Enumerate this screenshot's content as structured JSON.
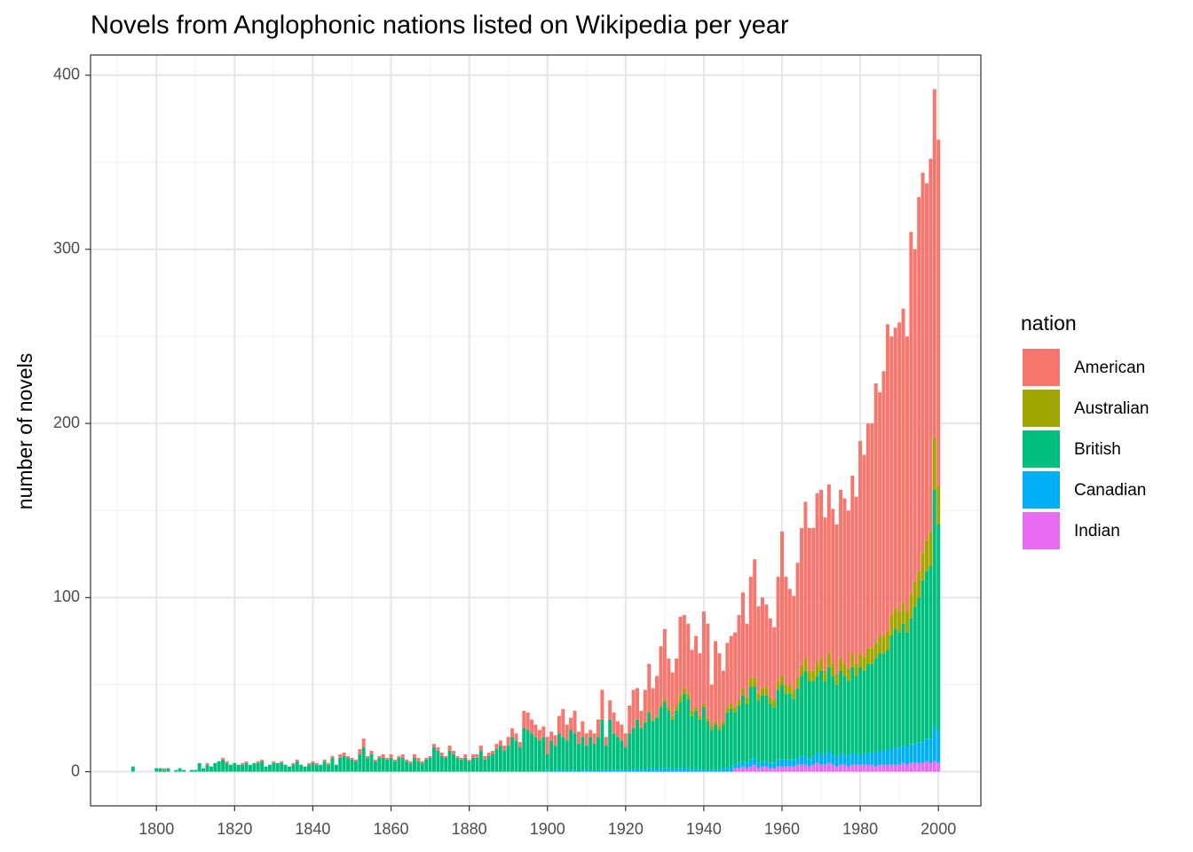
{
  "chart_data": {
    "type": "bar",
    "stacked": true,
    "title": "Novels from Anglophonic nations listed on Wikipedia per year",
    "y_label": "number of novels",
    "legend_title": "nation",
    "legend": "right",
    "grid": true,
    "xlim": [
      1783.15,
      2010.85
    ],
    "xticks": [
      1800,
      1820,
      1840,
      1860,
      1880,
      1900,
      1920,
      1940,
      1960,
      1980,
      2000
    ],
    "ylim": [
      -19.6,
      411.6
    ],
    "yticks": [
      0,
      100,
      200,
      300,
      400
    ],
    "x": [
      1794,
      1795,
      1796,
      1797,
      1798,
      1799,
      1800,
      1801,
      1802,
      1803,
      1804,
      1805,
      1806,
      1807,
      1808,
      1809,
      1810,
      1811,
      1812,
      1813,
      1814,
      1815,
      1816,
      1817,
      1818,
      1819,
      1820,
      1821,
      1822,
      1823,
      1824,
      1825,
      1826,
      1827,
      1828,
      1829,
      1830,
      1831,
      1832,
      1833,
      1834,
      1835,
      1836,
      1837,
      1838,
      1839,
      1840,
      1841,
      1842,
      1843,
      1844,
      1845,
      1846,
      1847,
      1848,
      1849,
      1850,
      1851,
      1852,
      1853,
      1854,
      1855,
      1856,
      1857,
      1858,
      1859,
      1860,
      1861,
      1862,
      1863,
      1864,
      1865,
      1866,
      1867,
      1868,
      1869,
      1870,
      1871,
      1872,
      1873,
      1874,
      1875,
      1876,
      1877,
      1878,
      1879,
      1880,
      1881,
      1882,
      1883,
      1884,
      1885,
      1886,
      1887,
      1888,
      1889,
      1890,
      1891,
      1892,
      1893,
      1894,
      1895,
      1896,
      1897,
      1898,
      1899,
      1900,
      1901,
      1902,
      1903,
      1904,
      1905,
      1906,
      1907,
      1908,
      1909,
      1910,
      1911,
      1912,
      1913,
      1914,
      1915,
      1916,
      1917,
      1918,
      1919,
      1920,
      1921,
      1922,
      1923,
      1924,
      1925,
      1926,
      1927,
      1928,
      1929,
      1930,
      1931,
      1932,
      1933,
      1934,
      1935,
      1936,
      1937,
      1938,
      1939,
      1940,
      1941,
      1942,
      1943,
      1944,
      1945,
      1946,
      1947,
      1948,
      1949,
      1950,
      1951,
      1952,
      1953,
      1954,
      1955,
      1956,
      1957,
      1958,
      1959,
      1960,
      1961,
      1962,
      1963,
      1964,
      1965,
      1966,
      1967,
      1968,
      1969,
      1970,
      1971,
      1972,
      1973,
      1974,
      1975,
      1976,
      1977,
      1978,
      1979,
      1980,
      1981,
      1982,
      1983,
      1984,
      1985,
      1986,
      1987,
      1988,
      1989,
      1990,
      1991,
      1992,
      1993,
      1994,
      1995,
      1996,
      1997,
      1998,
      1999,
      2000
    ],
    "series": [
      {
        "name": "American",
        "color": "#F8766D",
        "values": [
          0,
          0,
          0,
          0,
          0,
          0,
          0,
          0,
          1,
          0,
          0,
          0,
          0,
          0,
          0,
          0,
          0,
          0,
          0,
          1,
          0,
          0,
          0,
          1,
          1,
          0,
          0,
          0,
          1,
          1,
          0,
          0,
          1,
          1,
          0,
          0,
          1,
          0,
          1,
          0,
          0,
          1,
          1,
          0,
          0,
          1,
          1,
          1,
          0,
          1,
          1,
          1,
          0,
          2,
          2,
          1,
          1,
          1,
          3,
          5,
          1,
          2,
          1,
          1,
          2,
          1,
          2,
          1,
          1,
          2,
          1,
          1,
          2,
          2,
          1,
          1,
          1,
          2,
          2,
          2,
          1,
          3,
          2,
          1,
          1,
          2,
          1,
          2,
          2,
          3,
          2,
          2,
          2,
          3,
          3,
          3,
          5,
          5,
          4,
          3,
          10,
          10,
          8,
          7,
          6,
          6,
          10,
          5,
          6,
          10,
          16,
          9,
          7,
          13,
          7,
          9,
          7,
          4,
          6,
          10,
          17,
          5,
          11,
          12,
          9,
          9,
          8,
          16,
          22,
          18,
          10,
          18,
          27,
          18,
          23,
          34,
          40,
          28,
          25,
          27,
          45,
          42,
          40,
          35,
          41,
          36,
          53,
          54,
          24,
          46,
          42,
          29,
          37,
          39,
          43,
          49,
          55,
          42,
          58,
          68,
          50,
          52,
          47,
          45,
          42,
          60,
          83,
          62,
          55,
          54,
          66,
          79,
          90,
          82,
          82,
          98,
          97,
          88,
          97,
          89,
          86,
          97,
          95,
          91,
          102,
          96,
          122,
          116,
          129,
          129,
          149,
          140,
          152,
          176,
          160,
          161,
          166,
          169,
          158,
          208,
          191,
          215,
          218,
          205,
          214,
          200,
          199
        ]
      },
      {
        "name": "Australian",
        "color": "#A3A500",
        "values": [
          0,
          0,
          0,
          0,
          0,
          0,
          0,
          0,
          0,
          0,
          0,
          0,
          0,
          0,
          0,
          0,
          0,
          0,
          0,
          0,
          0,
          0,
          0,
          0,
          0,
          0,
          0,
          0,
          0,
          0,
          0,
          0,
          0,
          0,
          0,
          0,
          0,
          0,
          0,
          0,
          0,
          0,
          0,
          0,
          0,
          0,
          0,
          0,
          0,
          0,
          0,
          0,
          0,
          0,
          0,
          0,
          0,
          0,
          0,
          0,
          0,
          0,
          0,
          0,
          0,
          0,
          0,
          0,
          0,
          0,
          0,
          0,
          0,
          0,
          0,
          0,
          0,
          0,
          0,
          0,
          0,
          0,
          0,
          0,
          0,
          0,
          0,
          0,
          0,
          0,
          0,
          0,
          0,
          0,
          0,
          0,
          0,
          0,
          0,
          0,
          0,
          0,
          0,
          0,
          0,
          0,
          0,
          0,
          0,
          0,
          0,
          0,
          0,
          0,
          0,
          0,
          0,
          0,
          0,
          0,
          0,
          0,
          0,
          0,
          0,
          0,
          0,
          0,
          0,
          0,
          0,
          1,
          1,
          1,
          1,
          1,
          2,
          2,
          2,
          3,
          4,
          3,
          3,
          3,
          2,
          2,
          2,
          2,
          2,
          2,
          2,
          2,
          3,
          3,
          3,
          3,
          4,
          4,
          5,
          5,
          4,
          4,
          5,
          4,
          4,
          5,
          5,
          5,
          5,
          5,
          6,
          6,
          7,
          6,
          6,
          7,
          7,
          6,
          8,
          7,
          6,
          7,
          7,
          7,
          8,
          7,
          8,
          8,
          9,
          9,
          9,
          10,
          10,
          11,
          12,
          12,
          12,
          12,
          12,
          14,
          14,
          15,
          16,
          18,
          20,
          30,
          22
        ]
      },
      {
        "name": "British",
        "color": "#00BF7D",
        "values": [
          3,
          0,
          0,
          0,
          0,
          0,
          2,
          2,
          1,
          2,
          0,
          1,
          2,
          1,
          0,
          1,
          1,
          5,
          2,
          4,
          3,
          5,
          6,
          7,
          5,
          4,
          5,
          4,
          4,
          5,
          4,
          5,
          5,
          6,
          3,
          4,
          5,
          5,
          5,
          4,
          3,
          4,
          6,
          4,
          3,
          4,
          5,
          4,
          4,
          6,
          4,
          8,
          4,
          8,
          9,
          8,
          7,
          6,
          10,
          14,
          8,
          10,
          6,
          8,
          8,
          7,
          8,
          6,
          8,
          8,
          6,
          5,
          8,
          6,
          5,
          7,
          8,
          14,
          12,
          9,
          8,
          12,
          10,
          8,
          7,
          8,
          6,
          8,
          8,
          12,
          7,
          9,
          10,
          13,
          15,
          12,
          15,
          20,
          18,
          14,
          25,
          24,
          22,
          20,
          18,
          20,
          9,
          18,
          14,
          21,
          19,
          18,
          23,
          21,
          16,
          19,
          14,
          19,
          16,
          19,
          29,
          14,
          29,
          21,
          19,
          17,
          13,
          21,
          24,
          28,
          24,
          27,
          32,
          27,
          30,
          35,
          38,
          33,
          29,
          33,
          38,
          43,
          40,
          31,
          33,
          29,
          36,
          28,
          23,
          26,
          23,
          25,
          32,
          33,
          30,
          33,
          38,
          34,
          42,
          41,
          36,
          38,
          38,
          34,
          32,
          40,
          43,
          38,
          38,
          35,
          40,
          46,
          49,
          45,
          43,
          44,
          48,
          42,
          48,
          45,
          41,
          48,
          45,
          43,
          49,
          45,
          50,
          48,
          51,
          51,
          54,
          56,
          56,
          57,
          65,
          68,
          66,
          70,
          66,
          72,
          79,
          83,
          93,
          96,
          99,
          136,
          119
        ]
      },
      {
        "name": "Canadian",
        "color": "#00B0F6",
        "values": [
          0,
          0,
          0,
          0,
          0,
          0,
          0,
          0,
          0,
          0,
          0,
          0,
          0,
          0,
          0,
          0,
          0,
          0,
          0,
          0,
          0,
          0,
          0,
          0,
          0,
          0,
          0,
          0,
          0,
          0,
          0,
          0,
          0,
          0,
          0,
          0,
          0,
          0,
          0,
          0,
          0,
          0,
          0,
          0,
          0,
          0,
          0,
          0,
          0,
          0,
          0,
          0,
          0,
          0,
          0,
          0,
          0,
          0,
          0,
          0,
          0,
          0,
          0,
          0,
          0,
          0,
          0,
          0,
          0,
          0,
          0,
          0,
          0,
          0,
          0,
          0,
          0,
          0,
          0,
          0,
          0,
          0,
          0,
          0,
          0,
          0,
          0,
          0,
          0,
          0,
          0,
          0,
          0,
          0,
          0,
          0,
          0,
          0,
          0,
          0,
          0,
          0,
          0,
          0,
          0,
          0,
          1,
          0,
          1,
          1,
          1,
          0,
          1,
          1,
          0,
          1,
          1,
          1,
          0,
          1,
          1,
          1,
          1,
          1,
          1,
          1,
          1,
          1,
          1,
          2,
          1,
          1,
          2,
          2,
          1,
          2,
          2,
          2,
          1,
          2,
          2,
          2,
          2,
          1,
          2,
          1,
          1,
          1,
          1,
          1,
          1,
          2,
          2,
          3,
          2,
          3,
          3,
          3,
          4,
          4,
          3,
          3,
          3,
          3,
          3,
          4,
          4,
          4,
          4,
          4,
          4,
          5,
          5,
          4,
          5,
          6,
          6,
          6,
          7,
          6,
          6,
          6,
          6,
          6,
          7,
          6,
          6,
          6,
          7,
          7,
          8,
          8,
          8,
          9,
          9,
          10,
          10,
          10,
          10,
          11,
          11,
          12,
          12,
          13,
          14,
          20,
          18
        ]
      },
      {
        "name": "Indian",
        "color": "#E76BF3",
        "values": [
          0,
          0,
          0,
          0,
          0,
          0,
          0,
          0,
          0,
          0,
          0,
          0,
          0,
          0,
          0,
          0,
          0,
          0,
          0,
          0,
          0,
          0,
          0,
          0,
          0,
          0,
          0,
          0,
          0,
          0,
          0,
          0,
          0,
          0,
          0,
          0,
          0,
          0,
          0,
          0,
          0,
          0,
          0,
          0,
          0,
          0,
          0,
          0,
          0,
          0,
          0,
          0,
          0,
          0,
          0,
          0,
          0,
          0,
          0,
          0,
          0,
          0,
          0,
          0,
          0,
          0,
          0,
          0,
          0,
          0,
          0,
          0,
          0,
          0,
          0,
          0,
          0,
          0,
          0,
          0,
          0,
          0,
          0,
          0,
          0,
          0,
          0,
          0,
          0,
          0,
          0,
          0,
          0,
          0,
          0,
          0,
          0,
          0,
          0,
          0,
          0,
          0,
          0,
          0,
          0,
          0,
          0,
          0,
          0,
          0,
          0,
          0,
          0,
          0,
          0,
          0,
          0,
          0,
          0,
          0,
          0,
          0,
          0,
          0,
          0,
          0,
          0,
          0,
          0,
          0,
          0,
          0,
          0,
          0,
          0,
          0,
          0,
          0,
          0,
          0,
          0,
          0,
          0,
          0,
          0,
          0,
          0,
          0,
          0,
          0,
          0,
          0,
          0,
          0,
          2,
          2,
          3,
          2,
          3,
          4,
          2,
          3,
          3,
          2,
          2,
          3,
          3,
          3,
          3,
          3,
          4,
          4,
          4,
          3,
          4,
          5,
          4,
          4,
          5,
          4,
          3,
          4,
          4,
          3,
          4,
          4,
          4,
          4,
          4,
          4,
          3,
          4,
          4,
          4,
          4,
          4,
          4,
          5,
          4,
          5,
          5,
          5,
          5,
          6,
          5,
          6,
          5
        ]
      }
    ]
  }
}
